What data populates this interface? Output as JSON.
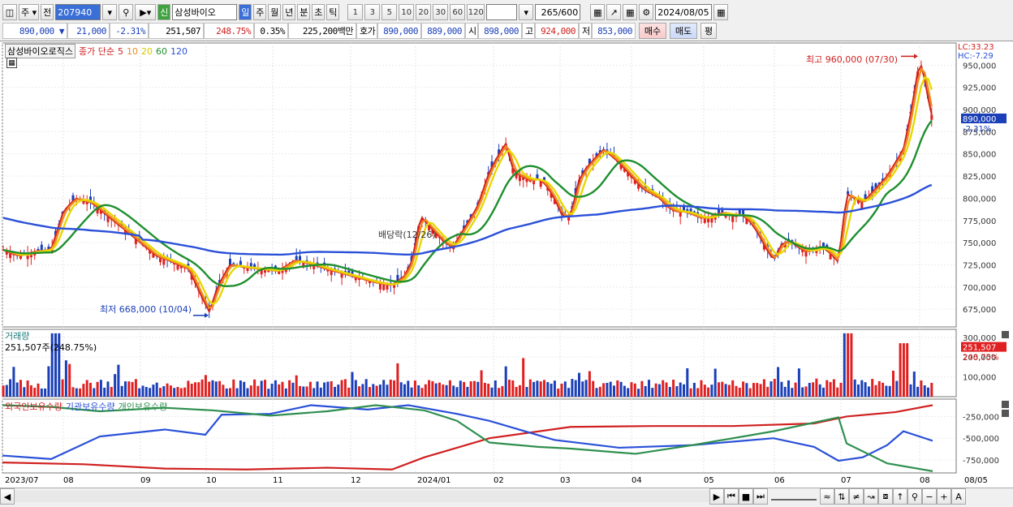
{
  "toolbar": {
    "type_select": "주",
    "prev_label": "전",
    "code": "207940",
    "badge": "신",
    "name": "삼성바이오",
    "periods": [
      "일",
      "주",
      "월",
      "년",
      "분",
      "초",
      "틱"
    ],
    "active_period": "일",
    "numbers": [
      "1",
      "3",
      "5",
      "10",
      "20",
      "30",
      "60",
      "120"
    ],
    "count": "265",
    "count_total": "/600",
    "date": "2024/08/05"
  },
  "quote": {
    "price": "890,000",
    "change": "21,000",
    "change_pct": "-2.31%",
    "volume": "251,507",
    "volume_pct": "248.75%",
    "turnover": "0.35%",
    "amount": "225,200백만",
    "bid_label": "호가",
    "ask": "890,000",
    "bid": "889,000",
    "open_label": "시",
    "open": "898,000",
    "high_label": "고",
    "high": "924,000",
    "low_label": "저",
    "low": "853,000",
    "buy_button": "매수",
    "sell_button": "매도",
    "eval_button": "평"
  },
  "price_panel": {
    "stock_name": "삼성바이오로직스",
    "ma_label": "종가 단순",
    "ma_periods": [
      "5",
      "10",
      "20",
      "60",
      "120"
    ],
    "ma_colors": [
      "#d02020",
      "#f08a1c",
      "#e6d800",
      "#1f8f2f",
      "#2a50d8"
    ],
    "lc": "LC:33.23",
    "hc": "HC:-7.29",
    "current_price": "890,000",
    "current_pct": "-2.31%",
    "high_annotation": "최고 960,000 (07/30)",
    "low_annotation": "최저 668,000 (10/04)",
    "dividend_annotation": "배당락(12/26)",
    "y_ticks": [
      "950,000",
      "925,000",
      "900,000",
      "875,000",
      "850,000",
      "825,000",
      "800,000",
      "775,000",
      "750,000",
      "725,000",
      "700,000",
      "675,000"
    ]
  },
  "volume_panel": {
    "title": "거래량",
    "info": "251,507주(248.75%)",
    "current": "251,507",
    "current_pct": "248.75%",
    "y_ticks": [
      "300,000",
      "200,000",
      "100,000"
    ]
  },
  "holdings_panel": {
    "series": [
      "외국인보유수량",
      "기관보유수량",
      "개인보유수량"
    ],
    "colors": [
      "#d02020",
      "#2a50d8",
      "#2f8f4f"
    ],
    "y_ticks": [
      "-250,000",
      "-500,000",
      "-750,000"
    ]
  },
  "x_axis": [
    "2023/07",
    "08",
    "09",
    "10",
    "11",
    "12",
    "2024/01",
    "02",
    "03",
    "04",
    "05",
    "06",
    "07",
    "08",
    "08/05"
  ]
}
